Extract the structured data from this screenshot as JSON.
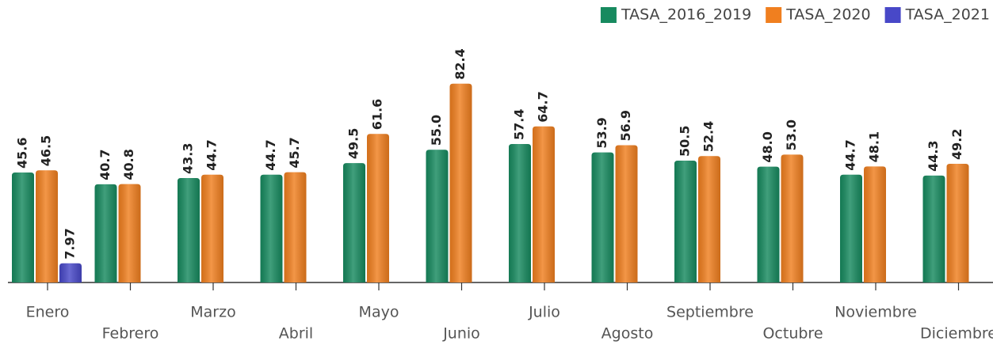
{
  "chart_data": {
    "type": "bar",
    "categories": [
      "Enero",
      "Febrero",
      "Marzo",
      "Abril",
      "Mayo",
      "Junio",
      "Julio",
      "Agosto",
      "Septiembre",
      "Octubre",
      "Noviembre",
      "Diciembre"
    ],
    "series": [
      {
        "name": "TASA_2016_2019",
        "color": "#178a5f",
        "values": [
          45.6,
          40.7,
          43.3,
          44.7,
          49.5,
          55.0,
          57.4,
          53.9,
          50.5,
          48.0,
          44.7,
          44.3
        ],
        "value_labels": [
          "45.6",
          "40.7",
          "43.3",
          "44.7",
          "49.5",
          "55.0",
          "57.4",
          "53.9",
          "50.5",
          "48.0",
          "44.7",
          "44.3"
        ]
      },
      {
        "name": "TASA_2020",
        "color": "#f07f1f",
        "values": [
          46.5,
          40.8,
          44.7,
          45.7,
          61.6,
          82.4,
          64.7,
          56.9,
          52.4,
          53.0,
          48.1,
          49.2
        ],
        "value_labels": [
          "46.5",
          "40.8",
          "44.7",
          "45.7",
          "61.6",
          "82.4",
          "64.7",
          "56.9",
          "52.4",
          "53.0",
          "48.1",
          "49.2"
        ]
      },
      {
        "name": "TASA_2021",
        "color": "#4848c8",
        "values": [
          7.97,
          null,
          null,
          null,
          null,
          null,
          null,
          null,
          null,
          null,
          null,
          null
        ],
        "value_labels": [
          "7.97",
          null,
          null,
          null,
          null,
          null,
          null,
          null,
          null,
          null,
          null,
          null
        ]
      }
    ],
    "ylim": [
      0,
      90
    ],
    "legend": "top-right"
  }
}
